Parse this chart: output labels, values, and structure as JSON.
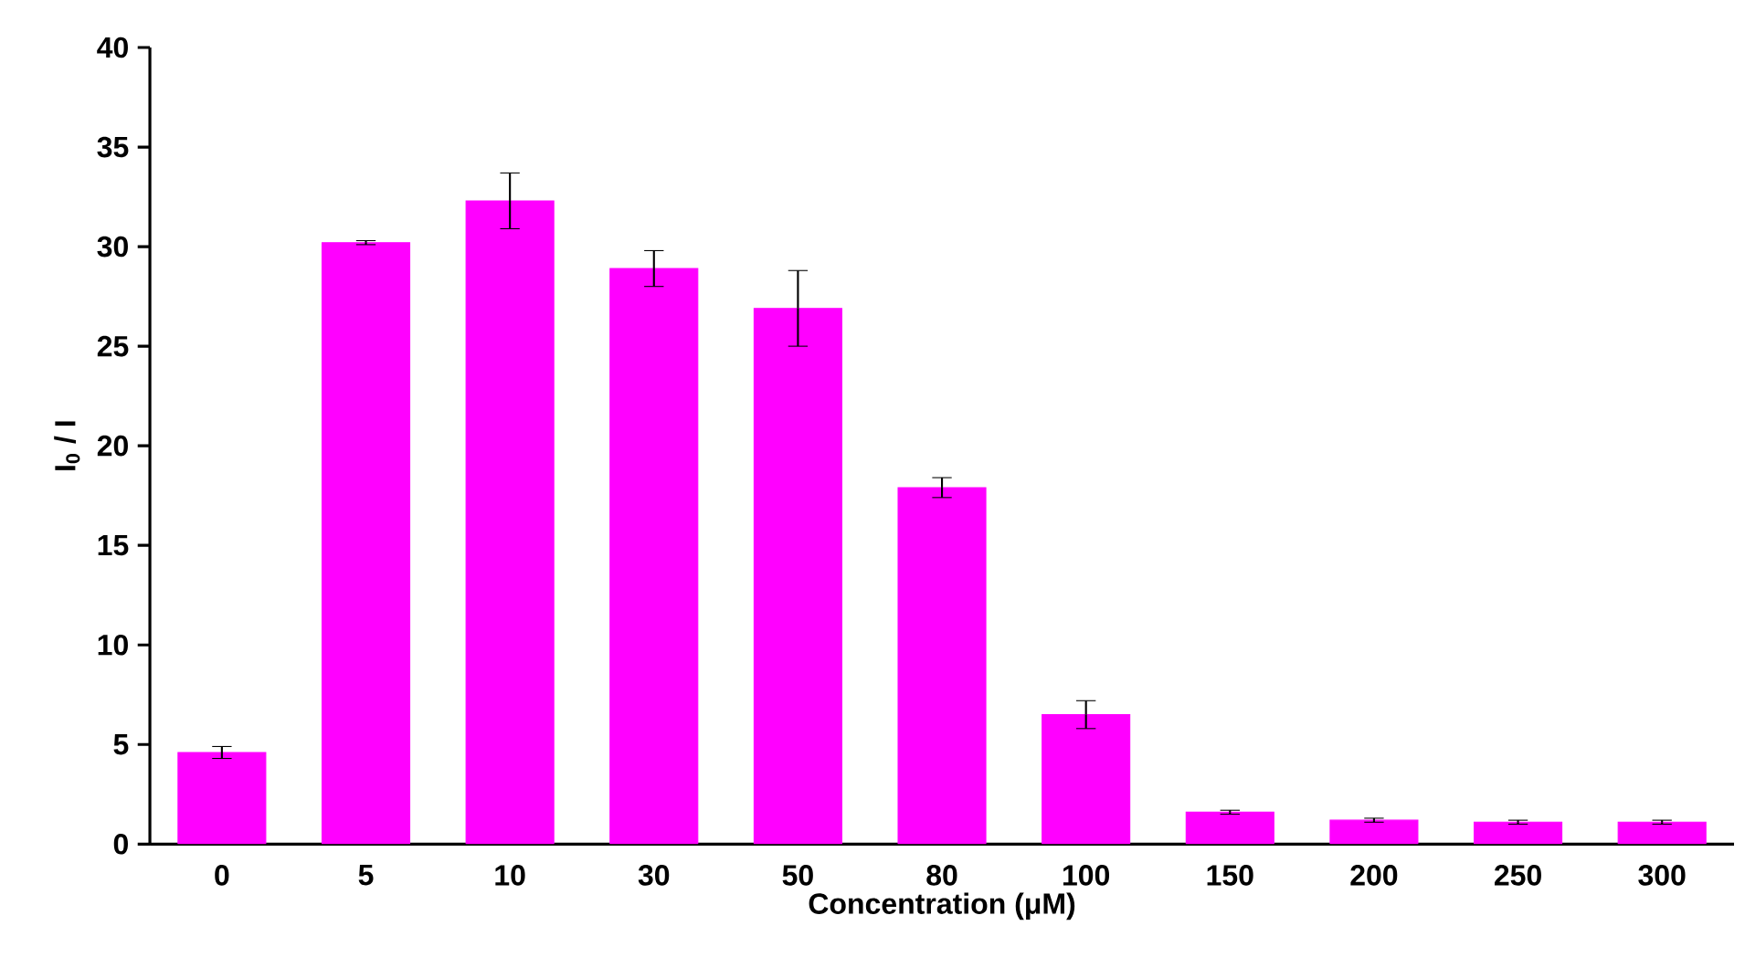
{
  "chart_data": {
    "type": "bar",
    "xlabel": "Concentration (μM)",
    "ylabel": "I$_{0}$ / I",
    "categories": [
      "0",
      "5",
      "10",
      "30",
      "50",
      "80",
      "100",
      "150",
      "200",
      "250",
      "300"
    ],
    "values": [
      4.6,
      30.2,
      32.3,
      28.9,
      26.9,
      17.9,
      6.5,
      1.6,
      1.2,
      1.1,
      1.1
    ],
    "errors": [
      0.3,
      0.1,
      1.4,
      0.9,
      1.9,
      0.5,
      0.7,
      0.1,
      0.1,
      0.1,
      0.1
    ],
    "color": "#ff00ff",
    "ylim": [
      0,
      40
    ],
    "yticks": [
      0,
      5,
      10,
      15,
      20,
      25,
      30,
      35,
      40
    ],
    "grid": false
  }
}
